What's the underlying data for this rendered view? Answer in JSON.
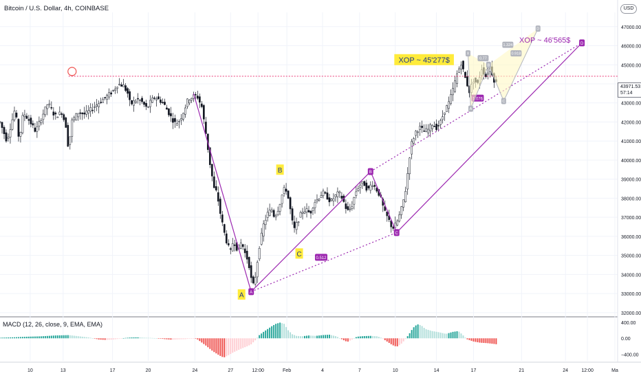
{
  "header": {
    "title": "Bitcoin / U.S. Dollar, 4h, COINBASE"
  },
  "currency_button": "USD",
  "last_price": {
    "value": "43971.53",
    "countdown": "57:14"
  },
  "macd": {
    "title": "MACD (12, 26, close, 9, EMA, EMA)",
    "ticks": [
      "400.00",
      "0.00",
      "−400.00"
    ]
  },
  "colors": {
    "bull": "#26a69a",
    "bear": "#ef5350",
    "bull_light": "#b2dfdb",
    "bear_light": "#ffcdd2",
    "pattern": "#9c27b0",
    "level_line": "#e91e63",
    "label_bg": "#ffeb3b",
    "future_leg": "#b2b5be"
  },
  "chart_data": [
    {
      "type": "candlestick",
      "title": "Bitcoin / U.S. Dollar, 4h, COINBASE",
      "x_ticks": [
        "10",
        "13",
        "17",
        "20",
        "24",
        "27",
        "12:00",
        "Feb",
        "4",
        "7",
        "10",
        "14",
        "17",
        "21",
        "24",
        "12:00",
        "Ma"
      ],
      "y_ticks": [
        "47000.00",
        "46000.00",
        "45000.00",
        "44000.00",
        "43000.00",
        "42000.00",
        "41000.00",
        "40000.00",
        "39000.00",
        "38000.00",
        "37000.00",
        "36000.00",
        "35000.00",
        "34000.00",
        "33000.00",
        "32000.00"
      ],
      "ylim": [
        31850,
        47750
      ],
      "price_path": [
        [
          0,
          42000
        ],
        [
          5,
          41000
        ],
        [
          11,
          42700
        ],
        [
          14,
          41000
        ],
        [
          17,
          42500
        ],
        [
          22,
          42000
        ],
        [
          26,
          41500
        ],
        [
          30,
          42200
        ],
        [
          35,
          43000
        ],
        [
          40,
          42300
        ],
        [
          45,
          42500
        ],
        [
          48,
          41800
        ],
        [
          50,
          40500
        ],
        [
          52,
          42000
        ],
        [
          57,
          42500
        ],
        [
          62,
          42400
        ],
        [
          67,
          42700
        ],
        [
          72,
          43000
        ],
        [
          77,
          43300
        ],
        [
          82,
          43600
        ],
        [
          86,
          44000
        ],
        [
          90,
          43900
        ],
        [
          93,
          43500
        ],
        [
          95,
          42900
        ],
        [
          98,
          43100
        ],
        [
          101,
          43200
        ],
        [
          104,
          43000
        ],
        [
          107,
          42700
        ],
        [
          110,
          43100
        ],
        [
          113,
          43300
        ],
        [
          116,
          43150
        ],
        [
          119,
          43000
        ],
        [
          122,
          42600
        ],
        [
          125,
          42200
        ],
        [
          128,
          41900
        ],
        [
          131,
          42100
        ],
        [
          134,
          42600
        ],
        [
          137,
          43200
        ],
        [
          140,
          43300
        ],
        [
          142,
          43400
        ],
        [
          144,
          43300
        ],
        [
          147,
          42800
        ],
        [
          150,
          41400
        ],
        [
          153,
          39800
        ],
        [
          156,
          38500
        ],
        [
          158,
          38300
        ],
        [
          161,
          37000
        ],
        [
          164,
          36000
        ],
        [
          166,
          35500
        ],
        [
          168,
          35200
        ],
        [
          170,
          35800
        ],
        [
          173,
          35300
        ],
        [
          176,
          35700
        ],
        [
          179,
          35000
        ],
        [
          181,
          34700
        ],
        [
          184,
          33300
        ],
        [
          186,
          33900
        ],
        [
          189,
          35500
        ],
        [
          192,
          36600
        ],
        [
          195,
          37200
        ],
        [
          198,
          37400
        ],
        [
          200,
          37000
        ],
        [
          203,
          37500
        ],
        [
          206,
          38300
        ],
        [
          208,
          38600
        ],
        [
          210,
          38000
        ],
        [
          212,
          37200
        ],
        [
          214,
          36300
        ],
        [
          217,
          36800
        ],
        [
          220,
          37300
        ],
        [
          223,
          37400
        ],
        [
          226,
          37200
        ],
        [
          229,
          37800
        ],
        [
          232,
          38000
        ],
        [
          235,
          38300
        ],
        [
          238,
          38100
        ],
        [
          241,
          37800
        ],
        [
          244,
          38100
        ],
        [
          247,
          38300
        ],
        [
          250,
          37900
        ],
        [
          253,
          37300
        ],
        [
          256,
          37500
        ],
        [
          259,
          38300
        ],
        [
          262,
          38700
        ],
        [
          265,
          38800
        ],
        [
          268,
          38400
        ],
        [
          271,
          38800
        ],
        [
          274,
          38500
        ],
        [
          277,
          38100
        ],
        [
          280,
          37300
        ],
        [
          283,
          36900
        ],
        [
          286,
          36400
        ],
        [
          289,
          36700
        ],
        [
          292,
          37300
        ],
        [
          294,
          37900
        ],
        [
          296,
          38600
        ],
        [
          298,
          40000
        ],
        [
          300,
          40900
        ],
        [
          303,
          41500
        ],
        [
          306,
          41700
        ],
        [
          309,
          41500
        ],
        [
          312,
          41600
        ],
        [
          315,
          41900
        ],
        [
          318,
          41700
        ],
        [
          321,
          42000
        ],
        [
          324,
          42600
        ],
        [
          327,
          43000
        ],
        [
          330,
          43700
        ],
        [
          333,
          44500
        ],
        [
          336,
          45100
        ],
        [
          339,
          44300
        ],
        [
          342,
          43600
        ],
        [
          345,
          44200
        ],
        [
          348,
          44000
        ],
        [
          351,
          44800
        ],
        [
          354,
          44400
        ],
        [
          357,
          44900
        ],
        [
          360,
          44200
        ],
        [
          362,
          44000
        ]
      ],
      "horizontal_level": 44400,
      "circled_high": 44650,
      "pattern_points": [
        {
          "id": "A",
          "x": 183,
          "y": 33100
        },
        {
          "id": "B",
          "x": 270,
          "y": 39400
        },
        {
          "id": "C",
          "x": 289,
          "y": 36200
        },
        {
          "id": "D",
          "x": 424,
          "y": 46150
        }
      ],
      "pattern_start": {
        "x": 141,
        "y": 43500
      },
      "ratio_badges": [
        {
          "text": "0.512",
          "x": 234,
          "y": 34900
        },
        {
          "text": "1.076",
          "x": 348,
          "y": 43250
        }
      ],
      "small_pattern": {
        "points": [
          {
            "id": "X",
            "x": 341,
            "y": 45600
          },
          {
            "id": "A",
            "x": 343,
            "y": 42700
          },
          {
            "id": "B",
            "x": 356,
            "y": 45000
          },
          {
            "id": "C",
            "x": 367,
            "y": 43100
          },
          {
            "id": "D",
            "x": 392,
            "y": 46900
          }
        ],
        "ratio_labels": [
          "0.77",
          "1.324",
          "0.918"
        ]
      },
      "annotations": [
        {
          "text": "XOP ~ 45'277$",
          "x": 309,
          "y": 45270,
          "style": "yellow"
        },
        {
          "text": "XOP ~ 46'565$",
          "x": 397,
          "y": 46300,
          "style": "purple"
        },
        {
          "text": "A",
          "x": 176,
          "y": 32950,
          "style": "yellow"
        },
        {
          "text": "B",
          "x": 204,
          "y": 39500,
          "style": "yellow"
        },
        {
          "text": "C",
          "x": 218,
          "y": 35100,
          "style": "yellow"
        }
      ]
    },
    {
      "type": "bar",
      "title": "MACD (12, 26, close, 9, EMA, EMA)",
      "ylim": [
        -560,
        500
      ],
      "histogram": [
        [
          0,
          15
        ],
        [
          10,
          25
        ],
        [
          20,
          40
        ],
        [
          30,
          50
        ],
        [
          40,
          70
        ],
        [
          50,
          80
        ],
        [
          55,
          60
        ],
        [
          60,
          40
        ],
        [
          65,
          20
        ],
        [
          68,
          0
        ],
        [
          72,
          -30
        ],
        [
          77,
          -40
        ],
        [
          82,
          -30
        ],
        [
          87,
          -10
        ],
        [
          90,
          5
        ],
        [
          95,
          20
        ],
        [
          100,
          25
        ],
        [
          105,
          15
        ],
        [
          110,
          10
        ],
        [
          115,
          0
        ],
        [
          120,
          -20
        ],
        [
          125,
          -35
        ],
        [
          130,
          -25
        ],
        [
          135,
          -20
        ],
        [
          140,
          0
        ],
        [
          143,
          -5
        ],
        [
          146,
          -80
        ],
        [
          150,
          -180
        ],
        [
          155,
          -320
        ],
        [
          160,
          -430
        ],
        [
          163,
          -480
        ],
        [
          166,
          -430
        ],
        [
          170,
          -350
        ],
        [
          175,
          -270
        ],
        [
          180,
          -200
        ],
        [
          183,
          -150
        ],
        [
          186,
          -50
        ],
        [
          189,
          80
        ],
        [
          192,
          160
        ],
        [
          195,
          230
        ],
        [
          198,
          300
        ],
        [
          201,
          360
        ],
        [
          204,
          390
        ],
        [
          207,
          360
        ],
        [
          210,
          200
        ],
        [
          213,
          100
        ],
        [
          216,
          60
        ],
        [
          220,
          50
        ],
        [
          225,
          70
        ],
        [
          230,
          60
        ],
        [
          235,
          80
        ],
        [
          240,
          90
        ],
        [
          245,
          50
        ],
        [
          250,
          -40
        ],
        [
          253,
          -90
        ],
        [
          256,
          -40
        ],
        [
          260,
          40
        ],
        [
          265,
          55
        ],
        [
          270,
          60
        ],
        [
          275,
          50
        ],
        [
          278,
          10
        ],
        [
          282,
          -80
        ],
        [
          286,
          -170
        ],
        [
          289,
          -210
        ],
        [
          292,
          -150
        ],
        [
          295,
          -40
        ],
        [
          298,
          100
        ],
        [
          301,
          260
        ],
        [
          304,
          350
        ],
        [
          307,
          320
        ],
        [
          310,
          230
        ],
        [
          315,
          180
        ],
        [
          320,
          150
        ],
        [
          325,
          110
        ],
        [
          330,
          160
        ],
        [
          334,
          180
        ],
        [
          337,
          90
        ],
        [
          340,
          -20
        ],
        [
          345,
          -80
        ],
        [
          350,
          -110
        ],
        [
          355,
          -120
        ],
        [
          360,
          -140
        ],
        [
          362,
          -150
        ]
      ]
    }
  ]
}
